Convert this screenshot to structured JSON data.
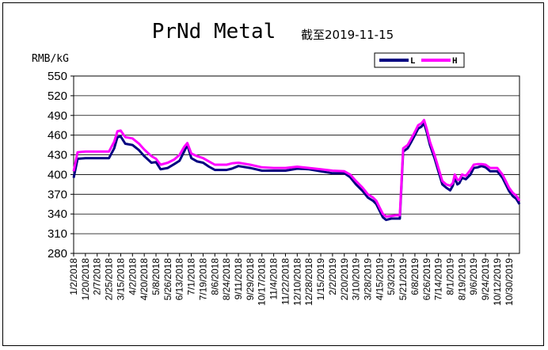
{
  "chart_data": {
    "type": "line",
    "title": "PrNd Metal",
    "subtitle": "截至2019-11-15",
    "ylabel": "RMB/kG",
    "ylim": [
      280,
      550
    ],
    "yticks": [
      280,
      310,
      340,
      370,
      400,
      430,
      460,
      490,
      520,
      550
    ],
    "grid": true,
    "legend_position": "top-right",
    "x_tick_labels": [
      "1/2/2018",
      "1/20/2018",
      "2/7/2018",
      "2/25/2018",
      "3/15/2018",
      "4/2/2018",
      "4/20/2018",
      "5/8/2018",
      "5/26/2018",
      "6/13/2018",
      "7/1/2018",
      "7/19/2018",
      "8/6/2018",
      "8/24/2018",
      "9/11/2018",
      "9/29/2018",
      "10/17/2018",
      "11/4/2018",
      "11/22/2018",
      "12/10/2018",
      "12/28/2018",
      "1/15/2019",
      "2/2/2019",
      "2/20/2019",
      "3/10/2019",
      "3/28/2019",
      "4/15/2019",
      "5/3/2019",
      "5/21/2019",
      "6/8/2019",
      "6/26/2019",
      "7/14/2019",
      "8/1/2019",
      "8/19/2019",
      "9/6/2019",
      "9/24/2019",
      "10/12/2019",
      "10/30/2019"
    ],
    "series": [
      {
        "name": "L",
        "color": "#000080",
        "x": [
          "2018-01-02",
          "2018-01-08",
          "2018-01-20",
          "2018-02-07",
          "2018-02-25",
          "2018-03-05",
          "2018-03-10",
          "2018-03-15",
          "2018-03-22",
          "2018-04-02",
          "2018-04-12",
          "2018-04-20",
          "2018-05-01",
          "2018-05-08",
          "2018-05-15",
          "2018-05-26",
          "2018-06-05",
          "2018-06-13",
          "2018-06-20",
          "2018-06-25",
          "2018-07-01",
          "2018-07-10",
          "2018-07-19",
          "2018-07-28",
          "2018-08-06",
          "2018-08-24",
          "2018-09-01",
          "2018-09-11",
          "2018-09-29",
          "2018-10-17",
          "2018-11-04",
          "2018-11-22",
          "2018-12-10",
          "2018-12-28",
          "2019-01-15",
          "2019-02-02",
          "2019-02-20",
          "2019-03-01",
          "2019-03-10",
          "2019-03-20",
          "2019-03-28",
          "2019-04-05",
          "2019-04-10",
          "2019-04-15",
          "2019-04-20",
          "2019-04-25",
          "2019-05-03",
          "2019-05-10",
          "2019-05-14",
          "2019-05-16",
          "2019-05-21",
          "2019-05-28",
          "2019-06-02",
          "2019-06-08",
          "2019-06-13",
          "2019-06-18",
          "2019-06-22",
          "2019-06-26",
          "2019-07-01",
          "2019-07-08",
          "2019-07-14",
          "2019-07-20",
          "2019-07-26",
          "2019-08-01",
          "2019-08-05",
          "2019-08-08",
          "2019-08-12",
          "2019-08-15",
          "2019-08-19",
          "2019-08-25",
          "2019-09-01",
          "2019-09-06",
          "2019-09-12",
          "2019-09-18",
          "2019-09-24",
          "2019-10-01",
          "2019-10-12",
          "2019-10-20",
          "2019-10-25",
          "2019-10-30",
          "2019-11-05",
          "2019-11-10",
          "2019-11-15"
        ],
        "values": [
          395,
          424,
          425,
          425,
          425,
          440,
          457,
          458,
          447,
          445,
          437,
          428,
          418,
          419,
          408,
          410,
          416,
          421,
          435,
          445,
          425,
          420,
          418,
          412,
          407,
          407,
          409,
          413,
          410,
          406,
          406,
          406,
          409,
          408,
          405,
          402,
          402,
          396,
          385,
          375,
          365,
          360,
          355,
          345,
          335,
          331,
          333,
          333,
          333,
          333,
          435,
          440,
          449,
          460,
          470,
          473,
          478,
          465,
          445,
          425,
          405,
          385,
          380,
          376,
          383,
          395,
          385,
          387,
          395,
          393,
          400,
          410,
          411,
          413,
          411,
          405,
          405,
          395,
          385,
          375,
          367,
          363,
          355
        ]
      },
      {
        "name": "H",
        "color": "#ff00ff",
        "x": [
          "2018-01-02",
          "2018-01-08",
          "2018-01-20",
          "2018-02-07",
          "2018-02-25",
          "2018-03-05",
          "2018-03-10",
          "2018-03-15",
          "2018-03-22",
          "2018-04-02",
          "2018-04-12",
          "2018-04-20",
          "2018-05-01",
          "2018-05-08",
          "2018-05-15",
          "2018-05-26",
          "2018-06-05",
          "2018-06-13",
          "2018-06-20",
          "2018-06-25",
          "2018-07-01",
          "2018-07-10",
          "2018-07-19",
          "2018-07-28",
          "2018-08-06",
          "2018-08-24",
          "2018-09-01",
          "2018-09-11",
          "2018-09-29",
          "2018-10-17",
          "2018-11-04",
          "2018-11-22",
          "2018-12-10",
          "2018-12-28",
          "2019-01-15",
          "2019-02-02",
          "2019-02-20",
          "2019-03-01",
          "2019-03-10",
          "2019-03-20",
          "2019-03-28",
          "2019-04-05",
          "2019-04-10",
          "2019-04-15",
          "2019-04-20",
          "2019-04-25",
          "2019-05-03",
          "2019-05-10",
          "2019-05-14",
          "2019-05-16",
          "2019-05-21",
          "2019-05-28",
          "2019-06-02",
          "2019-06-08",
          "2019-06-13",
          "2019-06-18",
          "2019-06-22",
          "2019-06-26",
          "2019-07-01",
          "2019-07-08",
          "2019-07-14",
          "2019-07-20",
          "2019-07-26",
          "2019-08-01",
          "2019-08-05",
          "2019-08-08",
          "2019-08-12",
          "2019-08-15",
          "2019-08-19",
          "2019-08-25",
          "2019-09-01",
          "2019-09-06",
          "2019-09-12",
          "2019-09-18",
          "2019-09-24",
          "2019-10-01",
          "2019-10-12",
          "2019-10-20",
          "2019-10-25",
          "2019-10-30",
          "2019-11-05",
          "2019-11-10",
          "2019-11-15"
        ],
        "values": [
          405,
          434,
          435,
          435,
          435,
          450,
          466,
          467,
          457,
          455,
          447,
          438,
          428,
          424,
          415,
          418,
          423,
          430,
          442,
          448,
          432,
          428,
          425,
          420,
          415,
          415,
          417,
          418,
          415,
          411,
          410,
          410,
          412,
          410,
          408,
          406,
          405,
          400,
          390,
          380,
          370,
          365,
          360,
          350,
          340,
          336,
          337,
          338,
          338,
          338,
          440,
          445,
          454,
          465,
          475,
          478,
          483,
          470,
          450,
          430,
          410,
          390,
          385,
          383,
          387,
          400,
          392,
          392,
          400,
          398,
          407,
          415,
          416,
          416,
          415,
          410,
          410,
          400,
          390,
          380,
          372,
          368,
          360
        ]
      }
    ]
  }
}
